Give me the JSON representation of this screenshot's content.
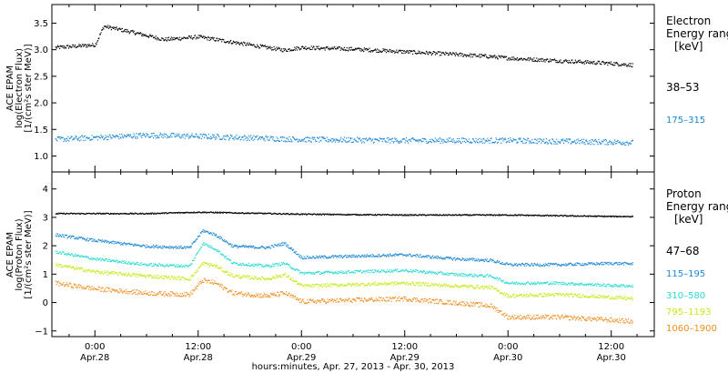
{
  "chart_data": [
    {
      "type": "scatter",
      "panel": "electron",
      "ylabel": [
        "ACE EPAM",
        "log(Electron Flux)",
        "[1/(cm²s ster MeV)]"
      ],
      "ylim": [
        0.7,
        3.85
      ],
      "yticks": [
        1.0,
        1.5,
        2.0,
        2.5,
        3.0,
        3.5
      ],
      "ytick_labels": [
        "1.0",
        "1.5",
        "2.0",
        "2.5",
        "3.0",
        "3.5"
      ],
      "legend_title": [
        "Electron",
        "Energy range",
        "[keV]"
      ],
      "legend_placement": "right",
      "grid": false,
      "series": [
        {
          "name": "38–53",
          "color": "#000000",
          "x": [
            -4.6,
            0,
            1,
            4,
            8,
            12,
            14,
            20,
            22,
            24,
            30,
            36,
            42,
            46,
            48,
            54,
            60,
            62.5
          ],
          "y": [
            3.05,
            3.1,
            3.45,
            3.35,
            3.2,
            3.25,
            3.2,
            3.05,
            3.0,
            3.05,
            3.02,
            2.97,
            2.92,
            2.88,
            2.85,
            2.8,
            2.75,
            2.72
          ]
        },
        {
          "name": "175–315",
          "color": "#1a86d6",
          "x": [
            -4.6,
            6,
            12,
            24,
            36,
            48,
            60,
            62.5
          ],
          "y": [
            1.32,
            1.4,
            1.38,
            1.32,
            1.3,
            1.3,
            1.27,
            1.26
          ]
        }
      ]
    },
    {
      "type": "scatter",
      "panel": "proton",
      "ylabel": [
        "ACE EPAM",
        "log(Proton Flux)",
        "[1/(cm²s ster MeV)]"
      ],
      "ylim": [
        -1.2,
        4.6
      ],
      "yticks": [
        -1,
        0,
        1,
        2,
        3,
        4
      ],
      "ytick_labels": [
        "−1",
        "0",
        "1",
        "2",
        "3",
        "4"
      ],
      "legend_title": [
        "Proton",
        "Energy range",
        "[keV]"
      ],
      "legend_placement": "right",
      "grid": false,
      "series": [
        {
          "name": "47–68",
          "color": "#000000",
          "x": [
            -4.6,
            6,
            12,
            24,
            36,
            48,
            60,
            62.5
          ],
          "y": [
            3.15,
            3.15,
            3.2,
            3.13,
            3.1,
            3.1,
            3.05,
            3.05
          ]
        },
        {
          "name": "115–195",
          "color": "#1a86d6",
          "x": [
            -4.6,
            0,
            6,
            11,
            12.5,
            14,
            16,
            20,
            22,
            24,
            30,
            36,
            42,
            46,
            48,
            54,
            60,
            62.5
          ],
          "y": [
            2.4,
            2.2,
            2.0,
            1.95,
            2.55,
            2.4,
            2.0,
            1.95,
            2.1,
            1.6,
            1.65,
            1.7,
            1.55,
            1.5,
            1.35,
            1.35,
            1.4,
            1.38
          ]
        },
        {
          "name": "310–580",
          "color": "#2adad0",
          "x": [
            -4.6,
            0,
            6,
            11,
            12.5,
            14,
            16,
            20,
            22,
            24,
            30,
            36,
            42,
            46,
            48,
            54,
            60,
            62.5
          ],
          "y": [
            1.8,
            1.55,
            1.35,
            1.3,
            2.1,
            1.9,
            1.4,
            1.3,
            1.4,
            1.05,
            1.1,
            1.15,
            1.0,
            0.95,
            0.7,
            0.7,
            0.62,
            0.6
          ]
        },
        {
          "name": "795–1193",
          "color": "#c7e81a",
          "x": [
            -4.6,
            0,
            6,
            11,
            12.5,
            14,
            16,
            20,
            22,
            24,
            30,
            36,
            42,
            46,
            48,
            54,
            60,
            62.5
          ],
          "y": [
            1.35,
            1.1,
            0.95,
            0.85,
            1.4,
            1.3,
            0.95,
            0.85,
            1.0,
            0.6,
            0.65,
            0.7,
            0.6,
            0.55,
            0.25,
            0.3,
            0.2,
            0.15
          ]
        },
        {
          "name": "1060–1900",
          "color": "#f08c1e",
          "x": [
            -4.6,
            0,
            6,
            11,
            12.5,
            14,
            16,
            20,
            22,
            24,
            30,
            36,
            42,
            46,
            48,
            54,
            60,
            62.5
          ],
          "y": [
            0.7,
            0.5,
            0.35,
            0.3,
            0.8,
            0.7,
            0.35,
            0.25,
            0.35,
            0.05,
            0.1,
            0.15,
            0.0,
            -0.1,
            -0.5,
            -0.5,
            -0.6,
            -0.65
          ]
        }
      ]
    }
  ],
  "xaxis": {
    "xlim": [
      -5,
      65
    ],
    "ticks": [
      {
        "x": 0,
        "time": "0:00",
        "date": "Apr.28"
      },
      {
        "x": 12,
        "time": "12:00",
        "date": "Apr.28"
      },
      {
        "x": 24,
        "time": "0:00",
        "date": "Apr.29"
      },
      {
        "x": 36,
        "time": "12:00",
        "date": "Apr.29"
      },
      {
        "x": 48,
        "time": "0:00",
        "date": "Apr.30"
      },
      {
        "x": 60,
        "time": "12:00",
        "date": "Apr.30"
      }
    ],
    "label": "hours:minutes, Apr. 27, 2013 - Apr. 30, 2013"
  }
}
